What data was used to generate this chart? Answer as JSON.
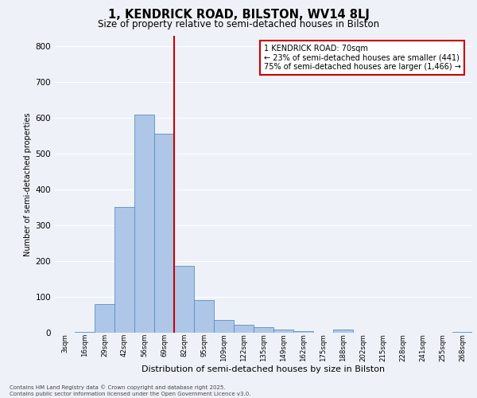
{
  "title1": "1, KENDRICK ROAD, BILSTON, WV14 8LJ",
  "title2": "Size of property relative to semi-detached houses in Bilston",
  "xlabel": "Distribution of semi-detached houses by size in Bilston",
  "ylabel": "Number of semi-detached properties",
  "bin_labels": [
    "3sqm",
    "16sqm",
    "29sqm",
    "42sqm",
    "56sqm",
    "69sqm",
    "82sqm",
    "95sqm",
    "109sqm",
    "122sqm",
    "135sqm",
    "149sqm",
    "162sqm",
    "175sqm",
    "188sqm",
    "202sqm",
    "215sqm",
    "228sqm",
    "241sqm",
    "255sqm",
    "268sqm"
  ],
  "bar_heights": [
    0,
    2,
    80,
    350,
    610,
    555,
    185,
    90,
    35,
    22,
    15,
    7,
    3,
    0,
    7,
    0,
    0,
    0,
    0,
    0,
    2
  ],
  "bar_color": "#aec6e8",
  "bar_edge_color": "#5a8fc0",
  "property_line_color": "#cc0000",
  "property_line_idx": 5.5,
  "annotation_text": "1 KENDRICK ROAD: 70sqm\n← 23% of semi-detached houses are smaller (441)\n75% of semi-detached houses are larger (1,466) →",
  "annotation_box_color": "#ffffff",
  "annotation_box_edge": "#cc0000",
  "background_color": "#eef2f8",
  "grid_color": "#ffffff",
  "ylim": [
    0,
    830
  ],
  "yticks": [
    0,
    100,
    200,
    300,
    400,
    500,
    600,
    700,
    800
  ],
  "footer": "Contains HM Land Registry data © Crown copyright and database right 2025.\nContains public sector information licensed under the Open Government Licence v3.0."
}
